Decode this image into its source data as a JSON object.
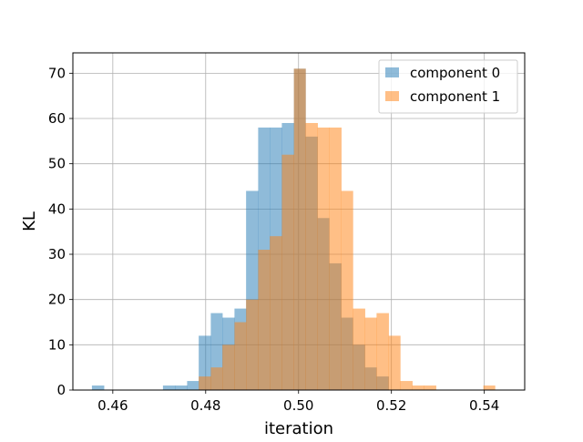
{
  "chart_data": {
    "type": "histogram",
    "xlabel": "iteration",
    "ylabel": "KL",
    "xlim": [
      0.4514,
      0.5487
    ],
    "ylim": [
      0,
      74.5
    ],
    "xticks": [
      0.46,
      0.48,
      0.5,
      0.52,
      0.54
    ],
    "xtick_labels": [
      "0.46",
      "0.48",
      "0.50",
      "0.52",
      "0.54"
    ],
    "yticks": [
      0,
      10,
      20,
      30,
      40,
      50,
      60,
      70
    ],
    "ytick_labels": [
      "0",
      "10",
      "20",
      "30",
      "40",
      "50",
      "60",
      "70"
    ],
    "grid": true,
    "legend_position": "top-right",
    "series": [
      {
        "name": "component 0",
        "color": "#1f77b4",
        "alpha": 0.5,
        "bins": [
          [
            0.4555,
            0.4581,
            1
          ],
          [
            0.4581,
            0.4606,
            0
          ],
          [
            0.4606,
            0.4632,
            0
          ],
          [
            0.4632,
            0.4657,
            0
          ],
          [
            0.4657,
            0.4683,
            0
          ],
          [
            0.4683,
            0.4708,
            0
          ],
          [
            0.4708,
            0.4734,
            1
          ],
          [
            0.4734,
            0.476,
            1
          ],
          [
            0.476,
            0.4785,
            2
          ],
          [
            0.4785,
            0.4811,
            12
          ],
          [
            0.4811,
            0.4836,
            17
          ],
          [
            0.4836,
            0.4862,
            16
          ],
          [
            0.4862,
            0.4887,
            18
          ],
          [
            0.4887,
            0.4913,
            44
          ],
          [
            0.4913,
            0.4938,
            58
          ],
          [
            0.4938,
            0.4964,
            58
          ],
          [
            0.4964,
            0.499,
            59
          ],
          [
            0.499,
            0.5015,
            71
          ],
          [
            0.5015,
            0.5041,
            56
          ],
          [
            0.5041,
            0.5066,
            38
          ],
          [
            0.5066,
            0.5092,
            28
          ],
          [
            0.5092,
            0.5117,
            16
          ],
          [
            0.5117,
            0.5143,
            10
          ],
          [
            0.5143,
            0.5168,
            5
          ],
          [
            0.5168,
            0.5194,
            3
          ]
        ]
      },
      {
        "name": "component 1",
        "color": "#ff7f0e",
        "alpha": 0.5,
        "bins": [
          [
            0.4785,
            0.4811,
            3
          ],
          [
            0.4811,
            0.4836,
            5
          ],
          [
            0.4836,
            0.4862,
            10
          ],
          [
            0.4862,
            0.4887,
            15
          ],
          [
            0.4887,
            0.4913,
            20
          ],
          [
            0.4913,
            0.4938,
            31
          ],
          [
            0.4938,
            0.4964,
            34
          ],
          [
            0.4964,
            0.499,
            52
          ],
          [
            0.499,
            0.5015,
            71
          ],
          [
            0.5015,
            0.5041,
            59
          ],
          [
            0.5041,
            0.5066,
            58
          ],
          [
            0.5066,
            0.5092,
            58
          ],
          [
            0.5092,
            0.5117,
            44
          ],
          [
            0.5117,
            0.5143,
            18
          ],
          [
            0.5143,
            0.5168,
            16
          ],
          [
            0.5168,
            0.5194,
            17
          ],
          [
            0.5194,
            0.5219,
            12
          ],
          [
            0.5219,
            0.5245,
            2
          ],
          [
            0.5245,
            0.527,
            1
          ],
          [
            0.527,
            0.5296,
            1
          ],
          [
            0.5296,
            0.5321,
            0
          ],
          [
            0.5321,
            0.5347,
            0
          ],
          [
            0.5347,
            0.5372,
            0
          ],
          [
            0.5372,
            0.5398,
            0
          ],
          [
            0.5398,
            0.5423,
            1
          ]
        ]
      }
    ]
  }
}
